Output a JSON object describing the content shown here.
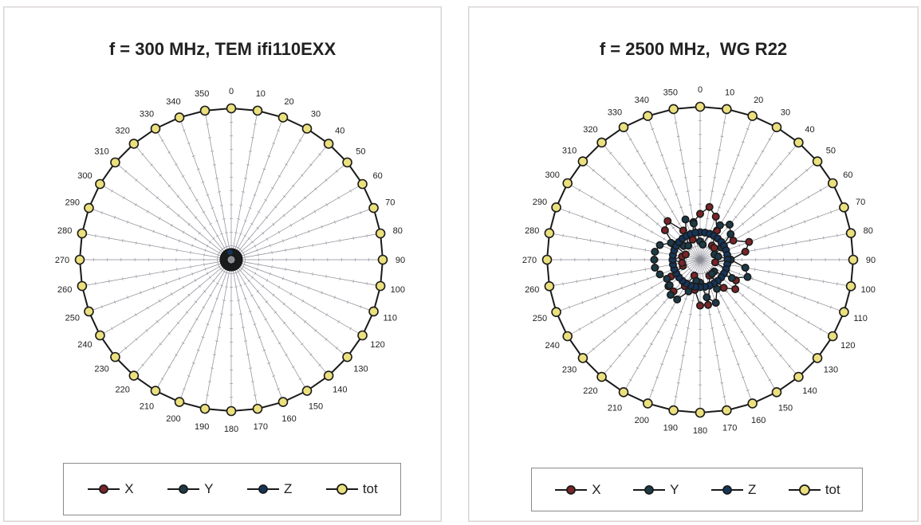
{
  "colors": {
    "X": "#7a2428",
    "Y": "#1d3a47",
    "Z": "#15355a",
    "tot": "#ebe07e",
    "outline": "#1a1a1a",
    "spoke": "#8a8a95"
  },
  "chart_data": [
    {
      "type": "polar",
      "title": "f = 300 MHz, TEM ifi110EXX",
      "angles_deg": [
        0,
        10,
        20,
        30,
        40,
        50,
        60,
        70,
        80,
        90,
        100,
        110,
        120,
        130,
        140,
        150,
        160,
        170,
        180,
        190,
        200,
        210,
        220,
        230,
        240,
        250,
        260,
        270,
        280,
        290,
        300,
        310,
        320,
        330,
        340,
        350
      ],
      "angle_labels": [
        "0",
        "10",
        "20",
        "30",
        "40",
        "50",
        "60",
        "70",
        "80",
        "90",
        "100",
        "110",
        "120",
        "130",
        "140",
        "150",
        "160",
        "170",
        "180",
        "190",
        "200",
        "210",
        "220",
        "230",
        "240",
        "250",
        "260",
        "270",
        "280",
        "290",
        "300",
        "310",
        "320",
        "330",
        "340",
        "350"
      ],
      "r_max": 1.0,
      "series": [
        {
          "name": "X",
          "values": [
            0.05,
            0.05,
            0.05,
            0.05,
            0.05,
            0.05,
            0.05,
            0.05,
            0.05,
            0.05,
            0.05,
            0.05,
            0.05,
            0.05,
            0.05,
            0.05,
            0.05,
            0.05,
            0.05,
            0.05,
            0.05,
            0.05,
            0.05,
            0.05,
            0.05,
            0.05,
            0.05,
            0.05,
            0.05,
            0.05,
            0.05,
            0.05,
            0.05,
            0.05,
            0.05,
            0.05
          ]
        },
        {
          "name": "Y",
          "values": [
            0.05,
            0.05,
            0.05,
            0.05,
            0.05,
            0.05,
            0.05,
            0.05,
            0.05,
            0.05,
            0.05,
            0.05,
            0.05,
            0.05,
            0.05,
            0.05,
            0.05,
            0.05,
            0.05,
            0.05,
            0.05,
            0.05,
            0.05,
            0.05,
            0.05,
            0.05,
            0.05,
            0.05,
            0.05,
            0.05,
            0.05,
            0.05,
            0.05,
            0.05,
            0.05,
            0.05
          ]
        },
        {
          "name": "Z",
          "values": [
            0.05,
            0.05,
            0.05,
            0.05,
            0.05,
            0.05,
            0.05,
            0.05,
            0.05,
            0.05,
            0.05,
            0.05,
            0.05,
            0.05,
            0.05,
            0.05,
            0.05,
            0.05,
            0.05,
            0.05,
            0.05,
            0.05,
            0.05,
            0.05,
            0.05,
            0.05,
            0.05,
            0.05,
            0.05,
            0.05,
            0.05,
            0.05,
            0.05,
            0.05,
            0.05,
            0.05
          ]
        },
        {
          "name": "tot",
          "values": [
            1,
            1,
            1,
            1,
            1,
            1,
            1,
            1,
            1,
            1,
            1,
            1,
            1,
            1,
            1,
            1,
            1,
            1,
            1,
            1,
            1,
            1,
            1,
            1,
            1,
            1,
            1,
            1,
            1,
            1,
            1,
            1,
            1,
            1,
            1,
            1
          ]
        }
      ],
      "legend": [
        "X",
        "Y",
        "Z",
        "tot"
      ],
      "legend_position": "bottom"
    },
    {
      "type": "polar",
      "title": "f = 2500 MHz,  WG R22",
      "angles_deg": [
        0,
        10,
        20,
        30,
        40,
        50,
        60,
        70,
        80,
        90,
        100,
        110,
        120,
        130,
        140,
        150,
        160,
        170,
        180,
        190,
        200,
        210,
        220,
        230,
        240,
        250,
        260,
        270,
        280,
        290,
        300,
        310,
        320,
        330,
        340,
        350
      ],
      "angle_labels": [
        "0",
        "10",
        "20",
        "30",
        "40",
        "50",
        "60",
        "70",
        "80",
        "90",
        "100",
        "110",
        "120",
        "130",
        "140",
        "150",
        "160",
        "170",
        "180",
        "190",
        "200",
        "210",
        "220",
        "230",
        "240",
        "250",
        "260",
        "270",
        "280",
        "290",
        "300",
        "310",
        "320",
        "330",
        "340",
        "350"
      ],
      "r_max": 1.0,
      "series": [
        {
          "name": "X",
          "values": [
            0.3,
            0.35,
            0.3,
            0.22,
            0.12,
            0.12,
            0.25,
            0.34,
            0.3,
            0.2,
            0.1,
            0.18,
            0.27,
            0.3,
            0.24,
            0.12,
            0.18,
            0.3,
            0.3,
            0.2,
            0.11,
            0.2,
            0.27,
            0.27,
            0.22,
            0.12,
            0.12,
            0.18,
            0.12,
            0.1,
            0.2,
            0.3,
            0.33,
            0.22,
            0.14,
            0.25
          ]
        },
        {
          "name": "Y",
          "values": [
            0.12,
            0.1,
            0.18,
            0.26,
            0.3,
            0.26,
            0.16,
            0.1,
            0.12,
            0.2,
            0.3,
            0.33,
            0.24,
            0.12,
            0.12,
            0.22,
            0.3,
            0.25,
            0.15,
            0.14,
            0.22,
            0.3,
            0.3,
            0.26,
            0.25,
            0.28,
            0.3,
            0.3,
            0.3,
            0.28,
            0.22,
            0.14,
            0.12,
            0.18,
            0.28,
            0.24
          ]
        },
        {
          "name": "Z",
          "values": [
            0.18,
            0.18,
            0.18,
            0.18,
            0.18,
            0.18,
            0.18,
            0.18,
            0.18,
            0.18,
            0.18,
            0.18,
            0.18,
            0.18,
            0.18,
            0.18,
            0.18,
            0.18,
            0.18,
            0.18,
            0.18,
            0.18,
            0.18,
            0.18,
            0.18,
            0.18,
            0.18,
            0.18,
            0.18,
            0.18,
            0.18,
            0.18,
            0.18,
            0.18,
            0.18,
            0.18
          ]
        },
        {
          "name": "tot",
          "values": [
            1,
            1,
            1,
            1,
            1,
            1,
            1,
            1,
            1,
            1,
            1,
            1,
            1,
            1,
            1,
            1,
            1,
            1,
            1,
            1,
            1,
            1,
            1,
            1,
            1,
            1,
            1,
            1,
            1,
            1,
            1,
            1,
            1,
            1,
            1,
            1
          ]
        }
      ],
      "legend": [
        "X",
        "Y",
        "Z",
        "tot"
      ],
      "legend_position": "bottom"
    }
  ]
}
